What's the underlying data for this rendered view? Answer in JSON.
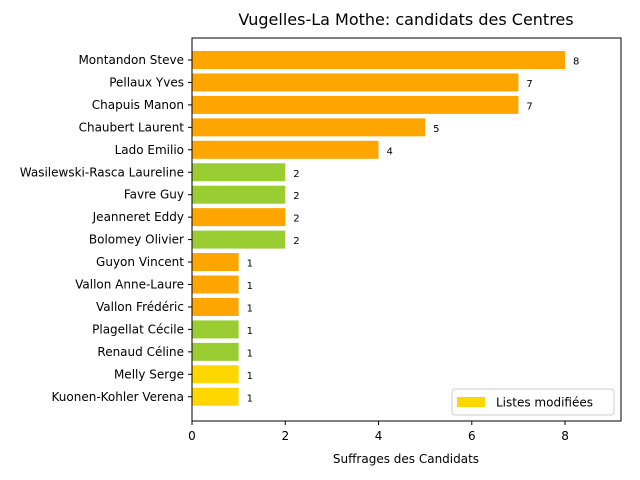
{
  "chart_data": {
    "type": "bar",
    "orientation": "horizontal",
    "title": "Vugelles-La Mothe: candidats des Centres",
    "xlabel": "Suffrages des Candidats",
    "ylabel": "",
    "xlim": [
      0,
      9.2
    ],
    "xticks": [
      0,
      2,
      4,
      6,
      8
    ],
    "grid": false,
    "categories": [
      "Montandon Steve",
      "Pellaux Yves",
      "Chapuis Manon",
      "Chaubert Laurent",
      "Lado Emilio",
      "Wasilewski-Rasca Laureline",
      "Favre Guy",
      "Jeanneret Eddy",
      "Bolomey Olivier",
      "Guyon Vincent",
      "Vallon Anne-Laure",
      "Vallon Frédéric",
      "Plagellat Cécile",
      "Renaud Céline",
      "Melly Serge",
      "Kuonen-Kohler Verena"
    ],
    "values": [
      8,
      7,
      7,
      5,
      4,
      2,
      2,
      2,
      2,
      1,
      1,
      1,
      1,
      1,
      1,
      1
    ],
    "bar_colors": [
      "#FFA500",
      "#FFA500",
      "#FFA500",
      "#FFA500",
      "#FFA500",
      "#9ACD32",
      "#9ACD32",
      "#FFA500",
      "#9ACD32",
      "#FFA500",
      "#FFA500",
      "#FFA500",
      "#9ACD32",
      "#9ACD32",
      "#FFD700",
      "#FFD700"
    ],
    "legend": {
      "position": "lower-right",
      "entries": [
        {
          "label": "Listes modifiées",
          "color": "#FFD700"
        }
      ]
    }
  }
}
